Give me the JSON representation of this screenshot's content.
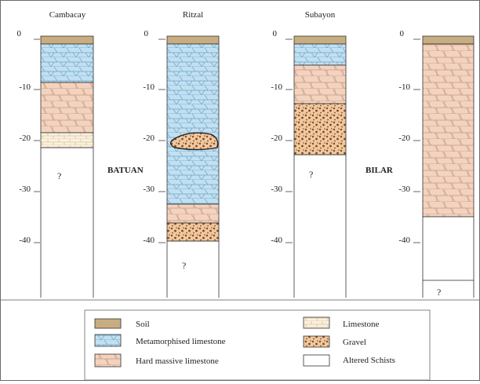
{
  "sites": [
    {
      "name": "Cambacay",
      "unknown_label": "?"
    },
    {
      "name": "Ritzal",
      "unknown_label": "?"
    },
    {
      "name": "Subayon",
      "unknown_label": "?"
    },
    {
      "name": "",
      "unknown_label": "?"
    }
  ],
  "group_labels": [
    "BATUAN",
    "BILAR"
  ],
  "depth_ticks": [
    "0",
    "-10",
    "-20",
    "-30",
    "-40"
  ],
  "legend": [
    {
      "key": "soil",
      "label": "Soil"
    },
    {
      "key": "meta",
      "label": "Metamorphised limestone"
    },
    {
      "key": "hard",
      "label": "Hard massive limestone"
    },
    {
      "key": "lime",
      "label": "Limestone"
    },
    {
      "key": "gravel",
      "label": "Gravel"
    },
    {
      "key": "schist",
      "label": "Altered Schists"
    }
  ],
  "colors": {
    "soil": "#c9ad82",
    "meta": "#c2e0f1",
    "hard": "#f3d3bf",
    "limestone": "#fbf0dc",
    "gravel": "#f1c89e",
    "schist": "#ffffff"
  }
}
